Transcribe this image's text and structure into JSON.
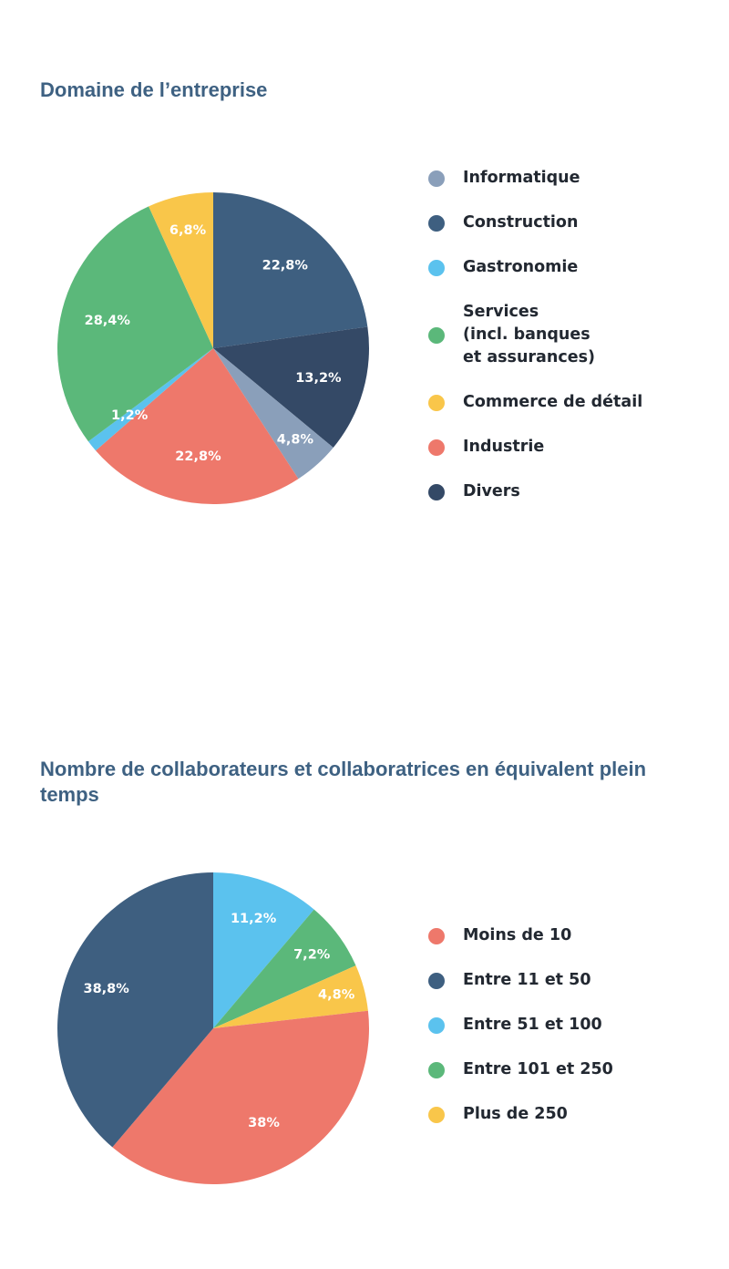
{
  "chart_data": [
    {
      "type": "pie",
      "title": "Domaine de l’entreprise",
      "slices": [
        {
          "label": "Construction",
          "value": 22.8,
          "value_label": "22,8%",
          "color": "#3e5f80"
        },
        {
          "label": "Divers",
          "value": 13.2,
          "value_label": "13,2%",
          "color": "#344966"
        },
        {
          "label": "Informatique",
          "value": 4.8,
          "value_label": "4,8%",
          "color": "#8a9fba"
        },
        {
          "label": "Industrie",
          "value": 22.8,
          "value_label": "22,8%",
          "color": "#ee786b"
        },
        {
          "label": "Gastronomie",
          "value": 1.2,
          "value_label": "1,2%",
          "color": "#5bc2ee"
        },
        {
          "label": "Services\n(incl. banques\net assurances)",
          "value": 28.4,
          "value_label": "28,4%",
          "color": "#5bb87a"
        },
        {
          "label": "Commerce de détail",
          "value": 6.8,
          "value_label": "6,8%",
          "color": "#f9c64a"
        }
      ],
      "legend_order": [
        "Informatique",
        "Construction",
        "Gastronomie",
        "Services\n(incl. banques\net assurances)",
        "Commerce de détail",
        "Industrie",
        "Divers"
      ],
      "legend_position": "right"
    },
    {
      "type": "pie",
      "title": "Nombre de collaborateurs et collaboratrices en équivalent plein temps",
      "slices": [
        {
          "label": "Entre 51 et 100",
          "value": 11.2,
          "value_label": "11,2%",
          "color": "#5bc2ee"
        },
        {
          "label": "Entre 101 et 250",
          "value": 7.2,
          "value_label": "7,2%",
          "color": "#5bb87a"
        },
        {
          "label": "Plus de 250",
          "value": 4.8,
          "value_label": "4,8%",
          "color": "#f9c64a"
        },
        {
          "label": "Moins de 10",
          "value": 38,
          "value_label": "38%",
          "color": "#ee786b"
        },
        {
          "label": "Entre 11 et 50",
          "value": 38.8,
          "value_label": "38,8%",
          "color": "#3e5f80"
        }
      ],
      "legend_order": [
        "Moins de 10",
        "Entre 11 et 50",
        "Entre 51 et 100",
        "Entre 101 et 250",
        "Plus de 250"
      ],
      "legend_position": "right"
    }
  ]
}
